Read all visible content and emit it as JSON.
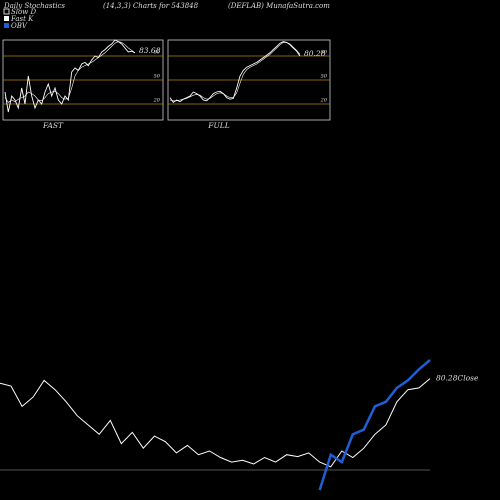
{
  "header": {
    "title": "Daily Stochastics",
    "subtitle": "(14,3,3) Charts for 543848",
    "source": "(DEFLAB) MunafaSutra.com"
  },
  "chart_data": [
    {
      "type": "line",
      "title": "FAST",
      "last_value": 83.68,
      "ylim": [
        0,
        100
      ],
      "yticks": [
        20,
        50,
        80
      ],
      "grid": true,
      "grid_color": "#b8860b",
      "series": [
        {
          "name": "Slow D",
          "color": "#ffffff",
          "values": [
            28,
            22,
            25,
            23,
            26,
            28,
            30,
            35,
            33,
            30,
            25,
            24,
            28,
            33,
            35,
            36,
            33,
            28,
            26,
            27,
            40,
            55,
            62,
            66,
            68,
            70,
            72,
            75,
            78,
            81,
            84,
            88,
            92,
            96,
            98,
            97,
            94,
            90,
            87,
            84
          ]
        },
        {
          "name": "Fast K",
          "color": "#ffffff",
          "values": [
            35,
            10,
            30,
            25,
            15,
            40,
            20,
            55,
            30,
            15,
            25,
            20,
            35,
            45,
            30,
            40,
            25,
            20,
            30,
            25,
            60,
            65,
            62,
            70,
            72,
            68,
            75,
            80,
            78,
            85,
            88,
            92,
            95,
            100,
            98,
            95,
            90,
            85,
            86,
            84
          ]
        }
      ]
    },
    {
      "type": "line",
      "title": "FULL",
      "last_value": 80.28,
      "ylim": [
        0,
        100
      ],
      "yticks": [
        20,
        50,
        80
      ],
      "grid": true,
      "grid_color": "#b8860b",
      "series": [
        {
          "color": "#ffffff",
          "values": [
            25,
            24,
            24,
            25,
            26,
            27,
            29,
            31,
            32,
            31,
            28,
            26,
            27,
            30,
            33,
            34,
            33,
            30,
            28,
            28,
            34,
            46,
            57,
            63,
            66,
            68,
            70,
            73,
            76,
            79,
            82,
            86,
            90,
            94,
            97,
            97,
            95,
            91,
            87,
            82
          ]
        },
        {
          "color": "#ffffff",
          "values": [
            28,
            22,
            25,
            23,
            26,
            28,
            30,
            35,
            33,
            30,
            25,
            24,
            28,
            33,
            35,
            36,
            33,
            28,
            26,
            27,
            40,
            55,
            62,
            66,
            68,
            70,
            72,
            75,
            78,
            81,
            84,
            88,
            92,
            96,
            98,
            97,
            94,
            90,
            86,
            80
          ]
        }
      ]
    },
    {
      "type": "line",
      "label": "80.28Close",
      "series": [
        {
          "color": "#ffffff",
          "values": [
            115,
            112,
            90,
            100,
            118,
            108,
            95,
            80,
            70,
            60,
            75,
            50,
            62,
            45,
            58,
            52,
            40,
            48,
            38,
            42,
            35,
            30,
            32,
            28,
            35,
            30,
            38,
            36,
            40,
            30,
            25,
            42,
            35,
            45,
            60,
            70,
            95,
            108,
            110,
            120
          ]
        },
        {
          "name": "OBV",
          "color": "#1f5fd6",
          "values": [
            null,
            null,
            null,
            null,
            null,
            null,
            null,
            null,
            null,
            null,
            null,
            null,
            null,
            null,
            null,
            null,
            null,
            null,
            null,
            null,
            null,
            null,
            null,
            null,
            null,
            null,
            null,
            null,
            null,
            0,
            38,
            30,
            60,
            65,
            90,
            95,
            110,
            118,
            130,
            140
          ]
        }
      ]
    }
  ]
}
